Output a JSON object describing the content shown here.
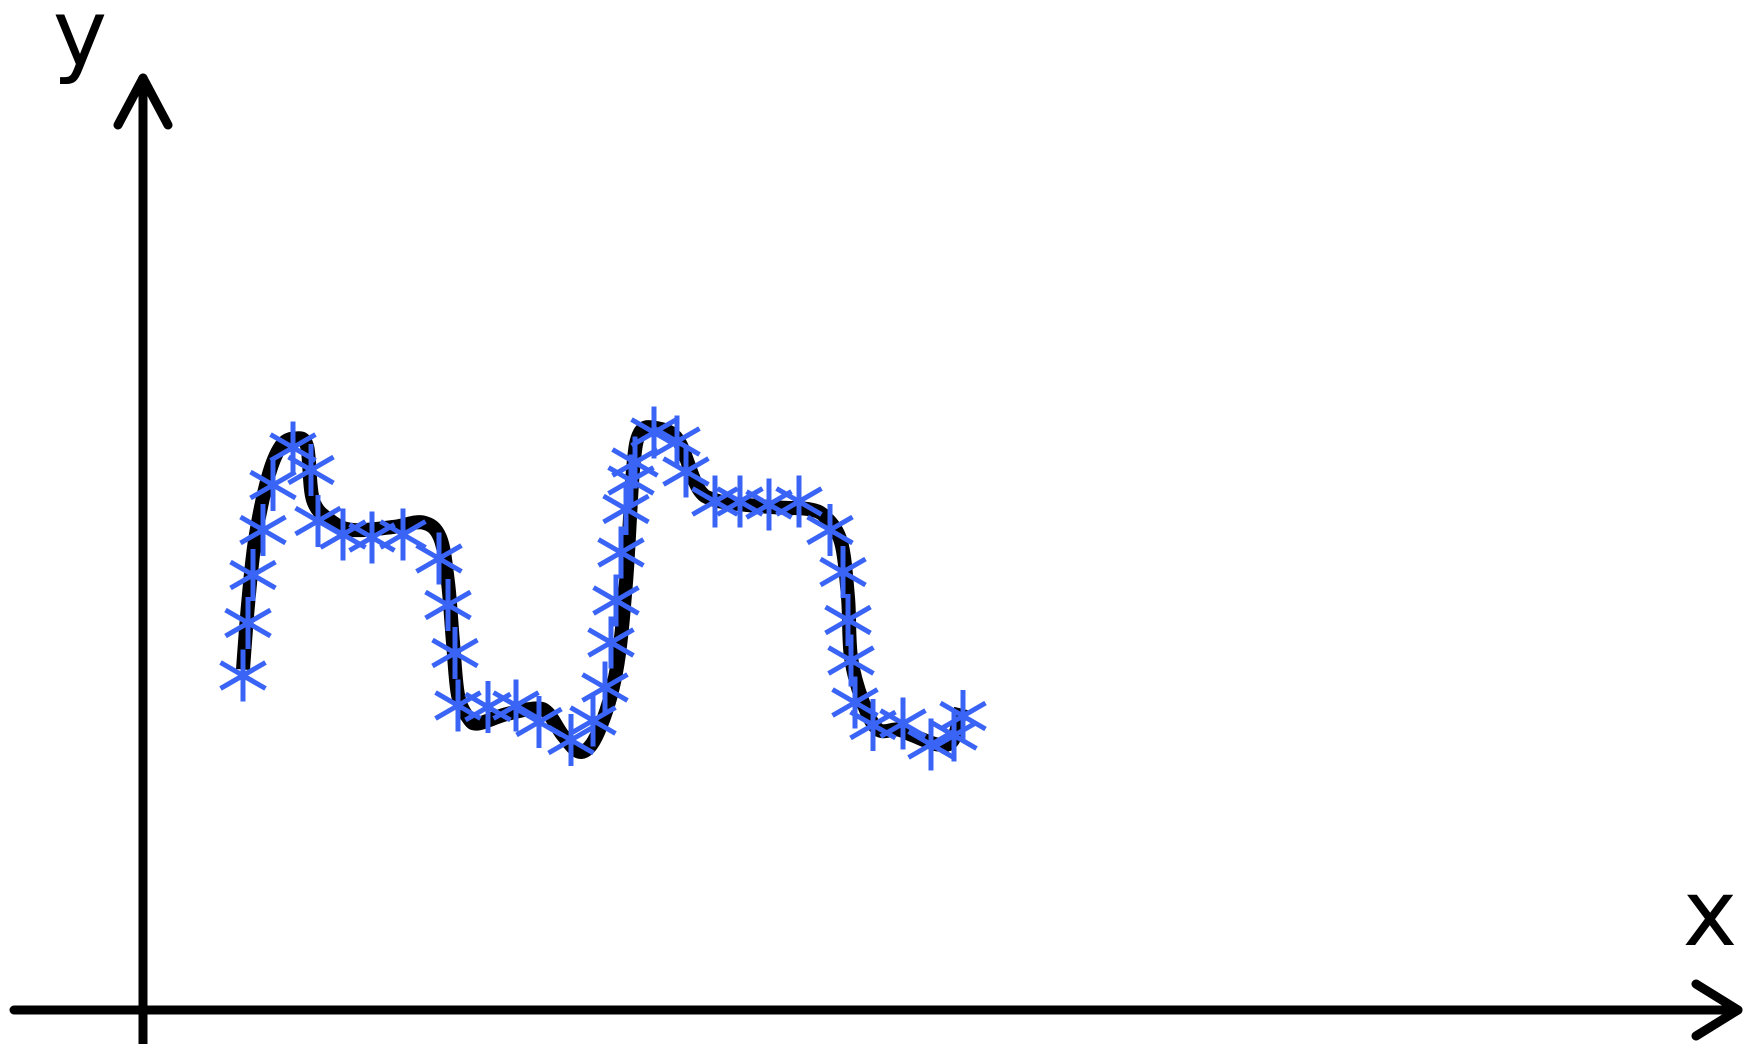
{
  "chart_data": {
    "type": "line",
    "xlabel": "x",
    "ylabel": "y",
    "grid": false,
    "legend": "none",
    "series": [
      {
        "kind": "curve",
        "color": "#000000",
        "points": [
          [
            1.0,
            2.27
          ],
          [
            1.05,
            2.7
          ],
          [
            1.12,
            3.13
          ],
          [
            1.25,
            3.55
          ],
          [
            1.38,
            3.76
          ],
          [
            1.52,
            3.81
          ],
          [
            1.64,
            3.76
          ],
          [
            1.7,
            3.4
          ],
          [
            1.88,
            3.26
          ],
          [
            2.1,
            3.2
          ],
          [
            2.5,
            3.22
          ],
          [
            2.8,
            3.25
          ],
          [
            2.97,
            3.15
          ],
          [
            3.05,
            2.85
          ],
          [
            3.1,
            2.45
          ],
          [
            3.15,
            2.1
          ],
          [
            3.25,
            1.95
          ],
          [
            3.35,
            1.91
          ],
          [
            3.62,
            1.97
          ],
          [
            3.92,
            2.01
          ],
          [
            4.05,
            1.98
          ],
          [
            4.2,
            1.83
          ],
          [
            4.38,
            1.72
          ],
          [
            4.55,
            1.85
          ],
          [
            4.73,
            2.25
          ],
          [
            4.83,
            2.85
          ],
          [
            4.9,
            3.6
          ],
          [
            4.97,
            3.85
          ],
          [
            5.13,
            3.88
          ],
          [
            5.35,
            3.8
          ],
          [
            5.55,
            3.48
          ],
          [
            5.72,
            3.4
          ],
          [
            6.0,
            3.37
          ],
          [
            6.35,
            3.35
          ],
          [
            6.65,
            3.34
          ],
          [
            6.82,
            3.29
          ],
          [
            6.98,
            3.12
          ],
          [
            7.05,
            2.75
          ],
          [
            7.08,
            2.35
          ],
          [
            7.2,
            2.05
          ],
          [
            7.35,
            1.87
          ],
          [
            7.55,
            1.87
          ],
          [
            7.7,
            1.83
          ],
          [
            7.95,
            1.77
          ],
          [
            8.1,
            1.8
          ],
          [
            8.18,
            2.01
          ]
        ]
      },
      {
        "kind": "markers",
        "marker": "asterisk",
        "color": "#3a64f5",
        "points": [
          [
            1.0,
            2.23
          ],
          [
            1.05,
            2.58
          ],
          [
            1.1,
            2.9
          ],
          [
            1.2,
            3.2
          ],
          [
            1.3,
            3.5
          ],
          [
            1.5,
            3.75
          ],
          [
            1.68,
            3.6
          ],
          [
            1.75,
            3.26
          ],
          [
            2.0,
            3.17
          ],
          [
            2.29,
            3.15
          ],
          [
            2.6,
            3.17
          ],
          [
            2.96,
            3.01
          ],
          [
            3.05,
            2.7
          ],
          [
            3.12,
            2.38
          ],
          [
            3.15,
            2.03
          ],
          [
            3.45,
            2.02
          ],
          [
            3.73,
            2.03
          ],
          [
            3.96,
            1.92
          ],
          [
            4.28,
            1.8
          ],
          [
            4.5,
            1.93
          ],
          [
            4.62,
            2.15
          ],
          [
            4.68,
            2.45
          ],
          [
            4.73,
            2.73
          ],
          [
            4.78,
            3.05
          ],
          [
            4.83,
            3.34
          ],
          [
            4.88,
            3.53
          ],
          [
            4.92,
            3.65
          ],
          [
            5.11,
            3.85
          ],
          [
            5.34,
            3.79
          ],
          [
            5.43,
            3.59
          ],
          [
            5.72,
            3.39
          ],
          [
            5.97,
            3.39
          ],
          [
            6.26,
            3.37
          ],
          [
            6.56,
            3.39
          ],
          [
            6.87,
            3.2
          ],
          [
            7.0,
            2.92
          ],
          [
            7.05,
            2.6
          ],
          [
            7.08,
            2.33
          ],
          [
            7.12,
            2.05
          ],
          [
            7.3,
            1.9
          ],
          [
            7.6,
            1.91
          ],
          [
            7.88,
            1.77
          ],
          [
            8.11,
            1.83
          ],
          [
            8.2,
            1.96
          ]
        ]
      }
    ]
  }
}
